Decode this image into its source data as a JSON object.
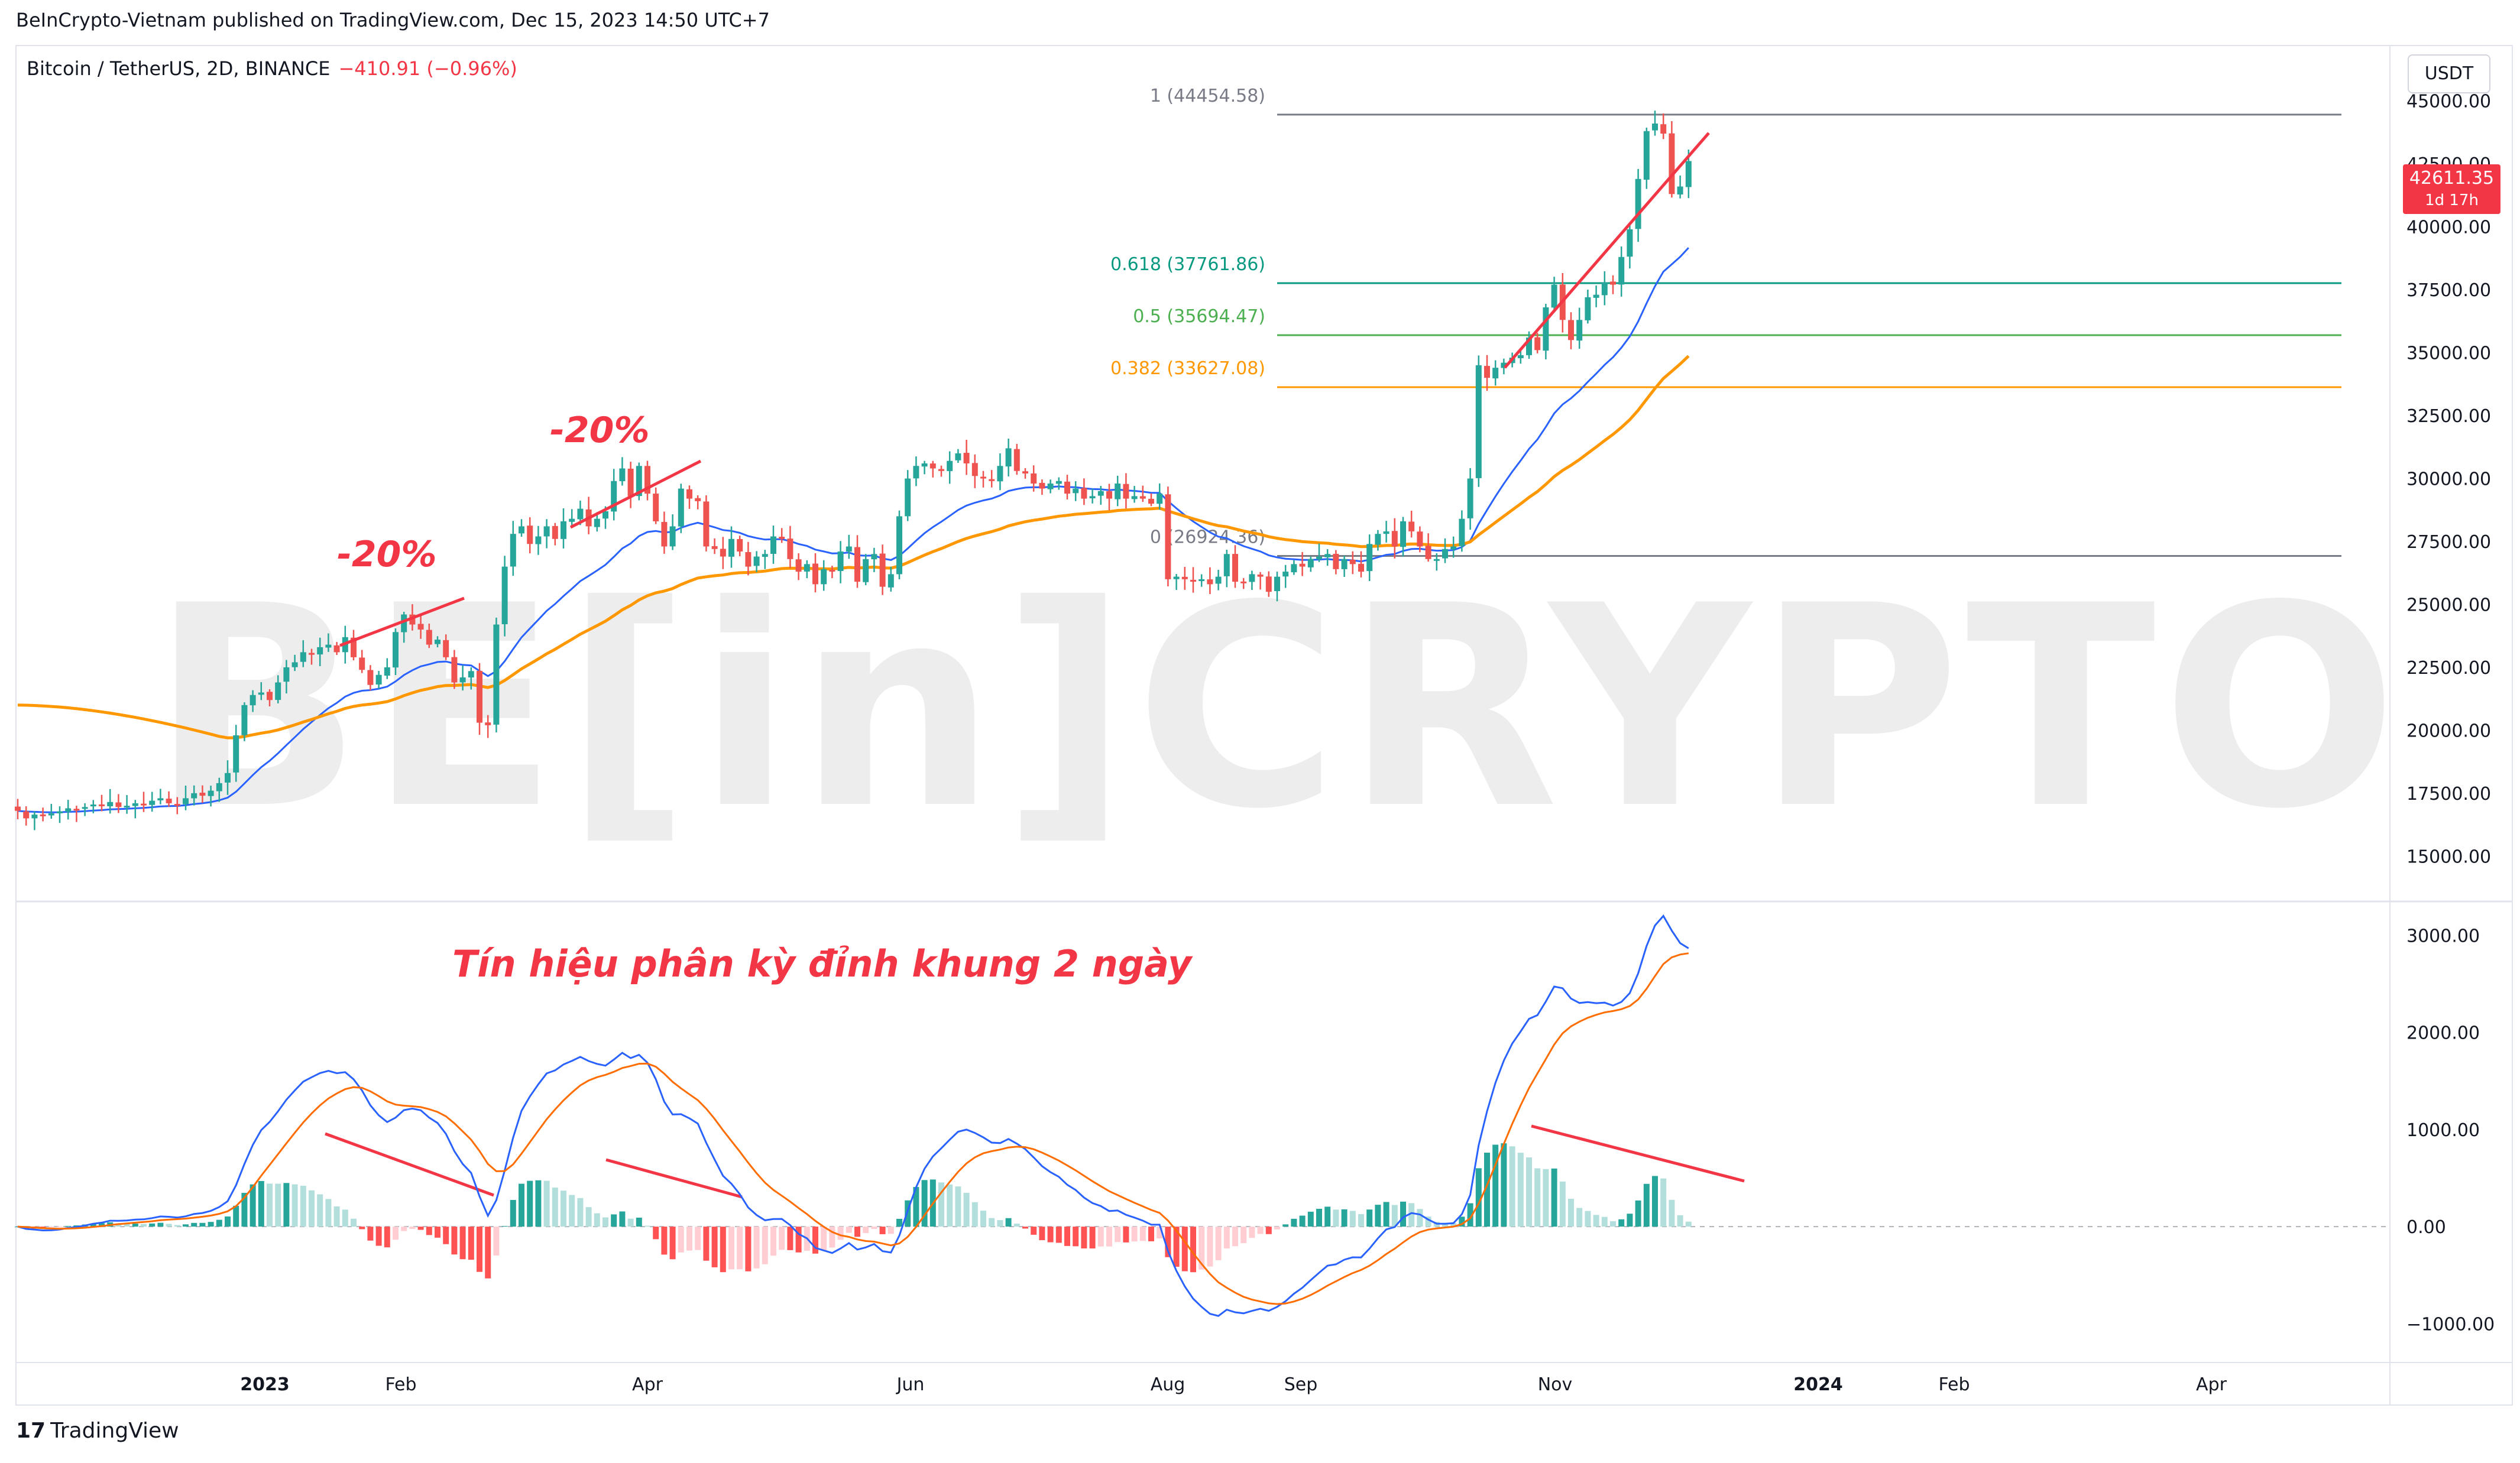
{
  "header": {
    "publisher": "BeInCrypto-Vietnam published on TradingView.com, Dec 15, 2023 14:50 UTC+7",
    "symbol": "Bitcoin / TetherUS, 2D, BINANCE",
    "change": "−410.91 (−0.96%)"
  },
  "scale_button": "USDT",
  "last_price": {
    "value": "42611.35",
    "countdown": "1d 17h"
  },
  "watermark": "BE[in]CRYPTO",
  "footer_logo": {
    "mark": "17",
    "text": "TradingView"
  },
  "colors": {
    "up": "#26a69a",
    "down": "#ef5350",
    "ema_fast": "#2962ff",
    "ema_slow": "#ff9800",
    "macd": "#2962ff",
    "signal": "#ff6d00",
    "annotation": "#f23645",
    "fib_618": "#089981",
    "fib_5": "#4caf50",
    "fib_382": "#ff9800",
    "fib_edge": "#787b86"
  },
  "chart_data": {
    "type": "candlestick",
    "title": "Bitcoin / TetherUS, 2D, BINANCE",
    "x_labels": [
      "2023",
      "Feb",
      "Apr",
      "Jun",
      "Aug",
      "Sep",
      "Nov",
      "2024",
      "Feb",
      "Apr"
    ],
    "price_axis": {
      "ylim": [
        13200,
        47200
      ],
      "ticks": [
        "45000.00",
        "42500.00",
        "40000.00",
        "37500.00",
        "35000.00",
        "32500.00",
        "30000.00",
        "27500.00",
        "25000.00",
        "22500.00",
        "20000.00",
        "17500.00",
        "15000.00"
      ]
    },
    "macd_axis": {
      "ylim": [
        -1400,
        3350
      ],
      "ticks": [
        "3000.00",
        "2000.00",
        "1000.00",
        "0.00",
        "−1000.00"
      ]
    },
    "fibonacci": [
      {
        "label": "1 (44454.58)",
        "value": 44454.58
      },
      {
        "label": "0.618 (37761.86)",
        "value": 37761.86
      },
      {
        "label": "0.5 (35694.47)",
        "value": 35694.47
      },
      {
        "label": "0.382 (33627.08)",
        "value": 33627.08
      },
      {
        "label": "0 (26924.36)",
        "value": 26924.36
      }
    ],
    "annotations": [
      "-20%",
      "-20%",
      "Tín hiệu phân kỳ đỉnh khung 2 ngày"
    ],
    "closes": [
      16800,
      16500,
      16650,
      16600,
      16700,
      16780,
      16900,
      16850,
      16950,
      17050,
      17000,
      17150,
      16950,
      17000,
      17100,
      17050,
      17200,
      17300,
      17100,
      17050,
      17300,
      17500,
      17400,
      17600,
      17900,
      18300,
      19800,
      21000,
      21400,
      21500,
      21200,
      21900,
      22500,
      22700,
      23100,
      23000,
      23300,
      23400,
      23100,
      23700,
      22900,
      22400,
      21800,
      22200,
      22500,
      23900,
      24600,
      24200,
      24000,
      23400,
      23600,
      22900,
      21900,
      22100,
      22350,
      20300,
      20200,
      24200,
      26500,
      27800,
      28100,
      27400,
      27700,
      28100,
      27600,
      28300,
      28400,
      28800,
      28100,
      28400,
      28700,
      29900,
      30400,
      29300,
      30500,
      29400,
      28300,
      27300,
      28100,
      29600,
      29200,
      29100,
      27300,
      27200,
      26900,
      27600,
      27100,
      26500,
      26900,
      27000,
      27700,
      27600,
      26800,
      26300,
      26600,
      25800,
      26400,
      26300,
      27100,
      27300,
      25900,
      26800,
      27000,
      25700,
      26200,
      28500,
      30000,
      30500,
      30600,
      30400,
      30300,
      30700,
      31000,
      30600,
      30100,
      30000,
      29900,
      30500,
      31200,
      30300,
      30200,
      29800,
      29600,
      29800,
      29900,
      29400,
      29600,
      29200,
      29300,
      29500,
      29200,
      29800,
      29200,
      29300,
      29200,
      29000,
      29400,
      26000,
      26100,
      26000,
      25900,
      26000,
      25800,
      26100,
      27000,
      25900,
      25900,
      26200,
      26100,
      25500,
      26100,
      26300,
      26600,
      26500,
      26800,
      26900,
      27000,
      26400,
      26800,
      26600,
      26300,
      27400,
      27800,
      27900,
      27300,
      28300,
      27900,
      27300,
      26800,
      26800,
      27200,
      27300,
      28400,
      30000,
      34500,
      34000,
      34400,
      34600,
      34800,
      34900,
      35600,
      35100,
      36800,
      37700,
      36300,
      35500,
      36300,
      37200,
      37300,
      37800,
      37700,
      38800,
      39900,
      41900,
      43800,
      44100,
      43700,
      41300,
      41600,
      42611
    ]
  }
}
